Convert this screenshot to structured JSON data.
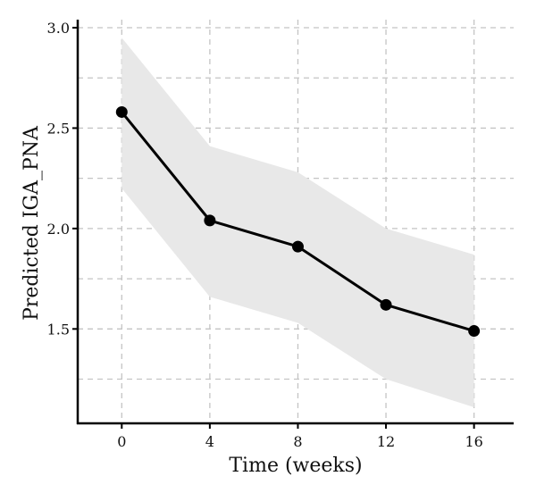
{
  "chart_data": {
    "type": "line",
    "xlabel": "Time (weeks)",
    "ylabel": "Predicted IGA_PNA",
    "x": [
      0,
      4,
      8,
      12,
      16
    ],
    "series": [
      {
        "values": [
          2.58,
          2.04,
          1.91,
          1.62,
          1.49
        ],
        "lower": [
          2.2,
          1.66,
          1.53,
          1.25,
          1.11
        ],
        "upper": [
          2.95,
          2.41,
          2.28,
          2.0,
          1.87
        ]
      }
    ],
    "xticks": [
      0,
      4,
      8,
      12,
      16
    ],
    "xtick_labels": [
      "0",
      "4",
      "8",
      "12",
      "16"
    ],
    "yticks": [
      1.5,
      2.0,
      2.5,
      3.0
    ],
    "ytick_labels": [
      "1.5",
      "2.0",
      "2.5",
      "3.0"
    ],
    "y_gridlines": [
      1.25,
      1.5,
      1.75,
      2.0,
      2.25,
      2.5,
      2.75,
      3.0
    ],
    "xlim": [
      -2,
      17.8
    ],
    "ylim": [
      1.03,
      3.04
    ],
    "grid": true,
    "colors": {
      "line": "#000000",
      "band": "#e8e8e8",
      "grid": "#c4c4c4",
      "axis": "#000000"
    }
  }
}
